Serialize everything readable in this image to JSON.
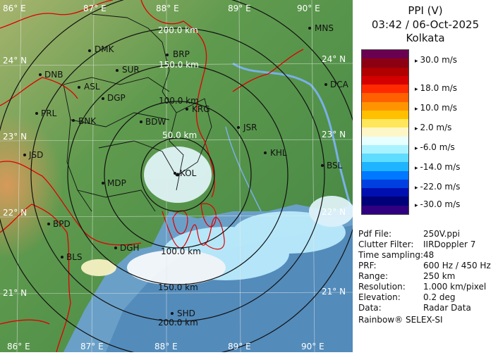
{
  "legend": {
    "title": "PPI (V)",
    "datetime": "03:42 / 06-Oct-2025",
    "station": "Kolkata",
    "scale": [
      {
        "label": "30.0 m/s",
        "value": 30.0
      },
      {
        "label": "18.0 m/s",
        "value": 18.0
      },
      {
        "label": "10.0 m/s",
        "value": 10.0
      },
      {
        "label": "2.0 m/s",
        "value": 2.0
      },
      {
        "label": "-6.0 m/s",
        "value": -6.0
      },
      {
        "label": "-14.0 m/s",
        "value": -14.0
      },
      {
        "label": "-22.0 m/s",
        "value": -22.0
      },
      {
        "label": "-30.0 m/s",
        "value": -30.0
      }
    ],
    "colors": [
      "#6a0050",
      "#8c0014",
      "#b00000",
      "#d40000",
      "#ff2a00",
      "#ff6000",
      "#ff9400",
      "#ffc000",
      "#ffe65a",
      "#fff6c8",
      "#e8ffff",
      "#aaf2ff",
      "#5fdcff",
      "#1eb4ff",
      "#0078ff",
      "#0040e0",
      "#0010b0",
      "#000078",
      "#300080"
    ]
  },
  "info": [
    {
      "key": "Pdf File:",
      "value": "250V.ppi"
    },
    {
      "key": "Clutter Filter:",
      "value": "IIRDoppler 7"
    },
    {
      "key": "Time sampling:",
      "value": "48"
    },
    {
      "key": "PRF:",
      "value": "600 Hz / 450 Hz"
    },
    {
      "key": "Range:",
      "value": "250 km"
    },
    {
      "key": "Resolution:",
      "value": "1.000 km/pixel"
    },
    {
      "key": "Elevation:",
      "value": "0.2 deg"
    },
    {
      "key": "Data:",
      "value": "Radar Data"
    }
  ],
  "footer": "Rainbow® SELEX-SI",
  "map": {
    "lon_labels": [
      "86° E",
      "87° E",
      "88° E",
      "89° E",
      "90° E"
    ],
    "lat_labels": [
      "24° N",
      "23° N",
      "22° N",
      "21° N"
    ],
    "range_labels": [
      "50.0 km",
      "100.0 km",
      "150.0 km",
      "200.0 km"
    ],
    "places": [
      {
        "name": "MNS"
      },
      {
        "name": "DMK"
      },
      {
        "name": "BRP"
      },
      {
        "name": "DNB"
      },
      {
        "name": "SUR"
      },
      {
        "name": "DCA"
      },
      {
        "name": "ASL"
      },
      {
        "name": "DGP"
      },
      {
        "name": "KRG"
      },
      {
        "name": "PRL"
      },
      {
        "name": "BNK"
      },
      {
        "name": "BDW"
      },
      {
        "name": "JSR"
      },
      {
        "name": "KHL"
      },
      {
        "name": "JSD"
      },
      {
        "name": "BSL"
      },
      {
        "name": "KOL"
      },
      {
        "name": "MDP"
      },
      {
        "name": "BPD"
      },
      {
        "name": "BLS"
      },
      {
        "name": "DGH"
      },
      {
        "name": "SHD"
      }
    ]
  }
}
